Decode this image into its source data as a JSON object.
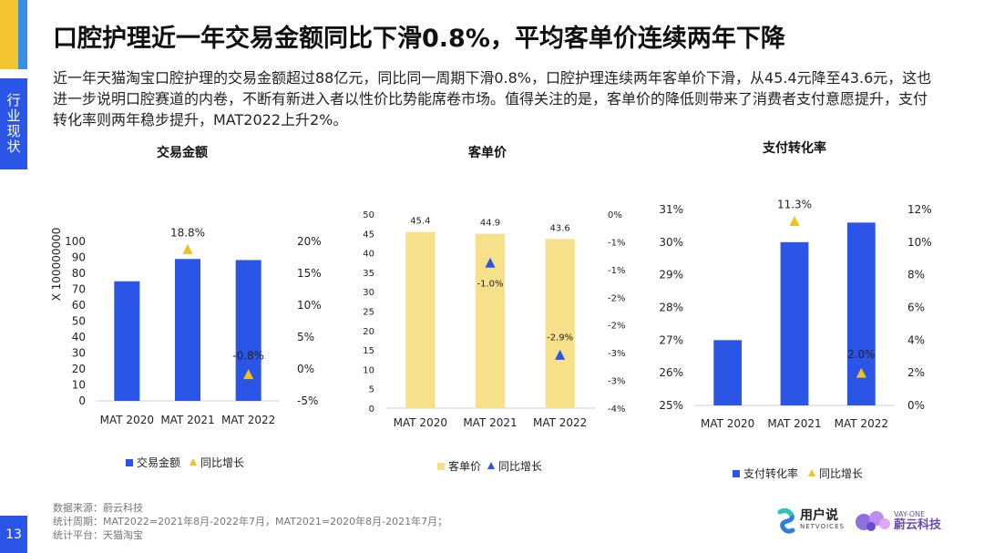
{
  "header": {
    "title": "口腔护理近一年交易金额同比下滑0.8%，平均客单价连续两年下降",
    "description": "近一年天猫淘宝口腔护理的交易金额超过88亿元，同比同一周期下滑0.8%，口腔护理连续两年客单价下滑，从45.4元降至43.6元，这也进一步说明口腔赛道的内卷，不断有新进入者以性价比势能席卷市场。值得关注的是，客单价的降低则带来了消费者支付意愿提升，支付转化率则两年稳步提升，MAT2022上升2%。"
  },
  "side_tab": {
    "label": "行业现状"
  },
  "page_number": "13",
  "colors": {
    "blue": "#2a55e6",
    "yellow": "#f7e08a",
    "triangle_yellow": "#f2c11c",
    "triangle_blue": "#2a55e6"
  },
  "chart_data": [
    {
      "type": "bar",
      "title": "交易金额",
      "ylabel": "X 100000000",
      "categories": [
        "MAT 2020",
        "MAT 2021",
        "MAT 2022"
      ],
      "ylim": [
        0,
        100
      ],
      "yticks": [
        "0",
        "10",
        "20",
        "30",
        "40",
        "50",
        "60",
        "70",
        "80",
        "90",
        "100"
      ],
      "y2lim": [
        -5,
        20
      ],
      "y2ticks": [
        "-5%",
        "0%",
        "5%",
        "10%",
        "15%",
        "20%"
      ],
      "series": [
        {
          "name": "交易金额",
          "kind": "bar",
          "color": "#2a55e6",
          "values": [
            75,
            89,
            88.3
          ]
        },
        {
          "name": "同比增长",
          "kind": "marker",
          "marker": "triangle",
          "color": "#f2c11c",
          "values": [
            null,
            18.8,
            -0.8
          ],
          "labels": [
            "",
            "18.8%",
            "-0.8%"
          ]
        }
      ],
      "legend": "bottom"
    },
    {
      "type": "bar",
      "title": "客单价",
      "categories": [
        "MAT 2020",
        "MAT 2021",
        "MAT 2022"
      ],
      "ylim": [
        0,
        50
      ],
      "yticks": [
        "0",
        "5",
        "10",
        "15",
        "20",
        "25",
        "30",
        "35",
        "40",
        "45",
        "50"
      ],
      "y2lim": [
        -4,
        0
      ],
      "y2ticks": [
        "-4%",
        "-3%",
        "-3%",
        "-2%",
        "-2%",
        "-1%",
        "-1%",
        "0%"
      ],
      "series": [
        {
          "name": "客单价",
          "kind": "bar",
          "color": "#f7e08a",
          "values": [
            45.4,
            44.9,
            43.6
          ],
          "labels": [
            "45.4",
            "44.9",
            "43.6"
          ]
        },
        {
          "name": "同比增长",
          "kind": "marker",
          "marker": "triangle",
          "color": "#2a55e6",
          "values": [
            null,
            -1.0,
            -2.9
          ],
          "labels": [
            "",
            "-1.0%",
            "-2.9%"
          ]
        }
      ],
      "legend": "bottom"
    },
    {
      "type": "bar",
      "title": "支付转化率",
      "categories": [
        "MAT 2020",
        "MAT 2021",
        "MAT 2022"
      ],
      "ylim": [
        25,
        31
      ],
      "yticks": [
        "25%",
        "26%",
        "27%",
        "28%",
        "29%",
        "30%",
        "31%"
      ],
      "y2lim": [
        0,
        12
      ],
      "y2ticks": [
        "0%",
        "2%",
        "4%",
        "6%",
        "8%",
        "10%",
        "12%"
      ],
      "series": [
        {
          "name": "支付转化率",
          "kind": "bar",
          "color": "#2a55e6",
          "values": [
            27.0,
            30.0,
            30.6
          ]
        },
        {
          "name": "同比增长",
          "kind": "marker",
          "marker": "triangle",
          "color": "#f2c11c",
          "values": [
            null,
            11.3,
            2.0
          ],
          "labels": [
            "",
            "11.3%",
            "2.0%"
          ]
        }
      ],
      "legend": "bottom"
    }
  ],
  "footer": {
    "source": "数据来源：蔚云科技",
    "period": "统计周期：MAT2022=2021年8月-2022年7月，MAT2021=2020年8月-2021年7月；",
    "platform": "统计平台：天猫淘宝"
  },
  "logos": {
    "netvoices_cn": "用户说",
    "netvoices_en": "NETVOICES",
    "vayone_en": "VAY-ONE",
    "vayone_cn": "蔚云科技"
  }
}
